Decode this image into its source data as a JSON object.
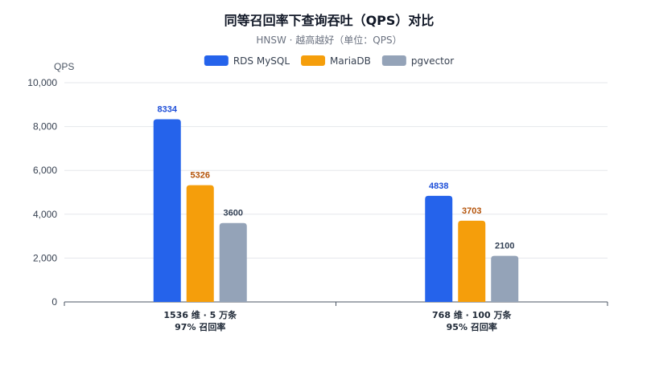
{
  "chart_data": {
    "type": "bar",
    "title": "同等召回率下查询吞吐（QPS）对比",
    "subtitle": "HNSW · 越高越好（单位：QPS）",
    "ylabel": "QPS",
    "xlabel": "",
    "ylim": [
      0,
      10000
    ],
    "yticks": [
      "0",
      "2,000",
      "4,000",
      "6,000",
      "8,000",
      "10,000"
    ],
    "yticks_values": [
      0,
      2000,
      4000,
      6000,
      8000,
      10000
    ],
    "grid": true,
    "legend_position": "top-center",
    "categories": [
      [
        "1536 维 · 5 万条",
        "97% 召回率"
      ],
      [
        "768 维 · 100 万条",
        "95% 召回率"
      ]
    ],
    "series": [
      {
        "name": "RDS MySQL",
        "values": [
          8334,
          4838
        ],
        "color": "#2563eb",
        "label_color": "#1d4ed8"
      },
      {
        "name": "MariaDB",
        "values": [
          5326,
          3703
        ],
        "color": "#f59e0b",
        "label_color": "#b45309"
      },
      {
        "name": "pgvector",
        "values": [
          3600,
          2100
        ],
        "color": "#94a3b8",
        "label_color": "#334155"
      }
    ]
  }
}
